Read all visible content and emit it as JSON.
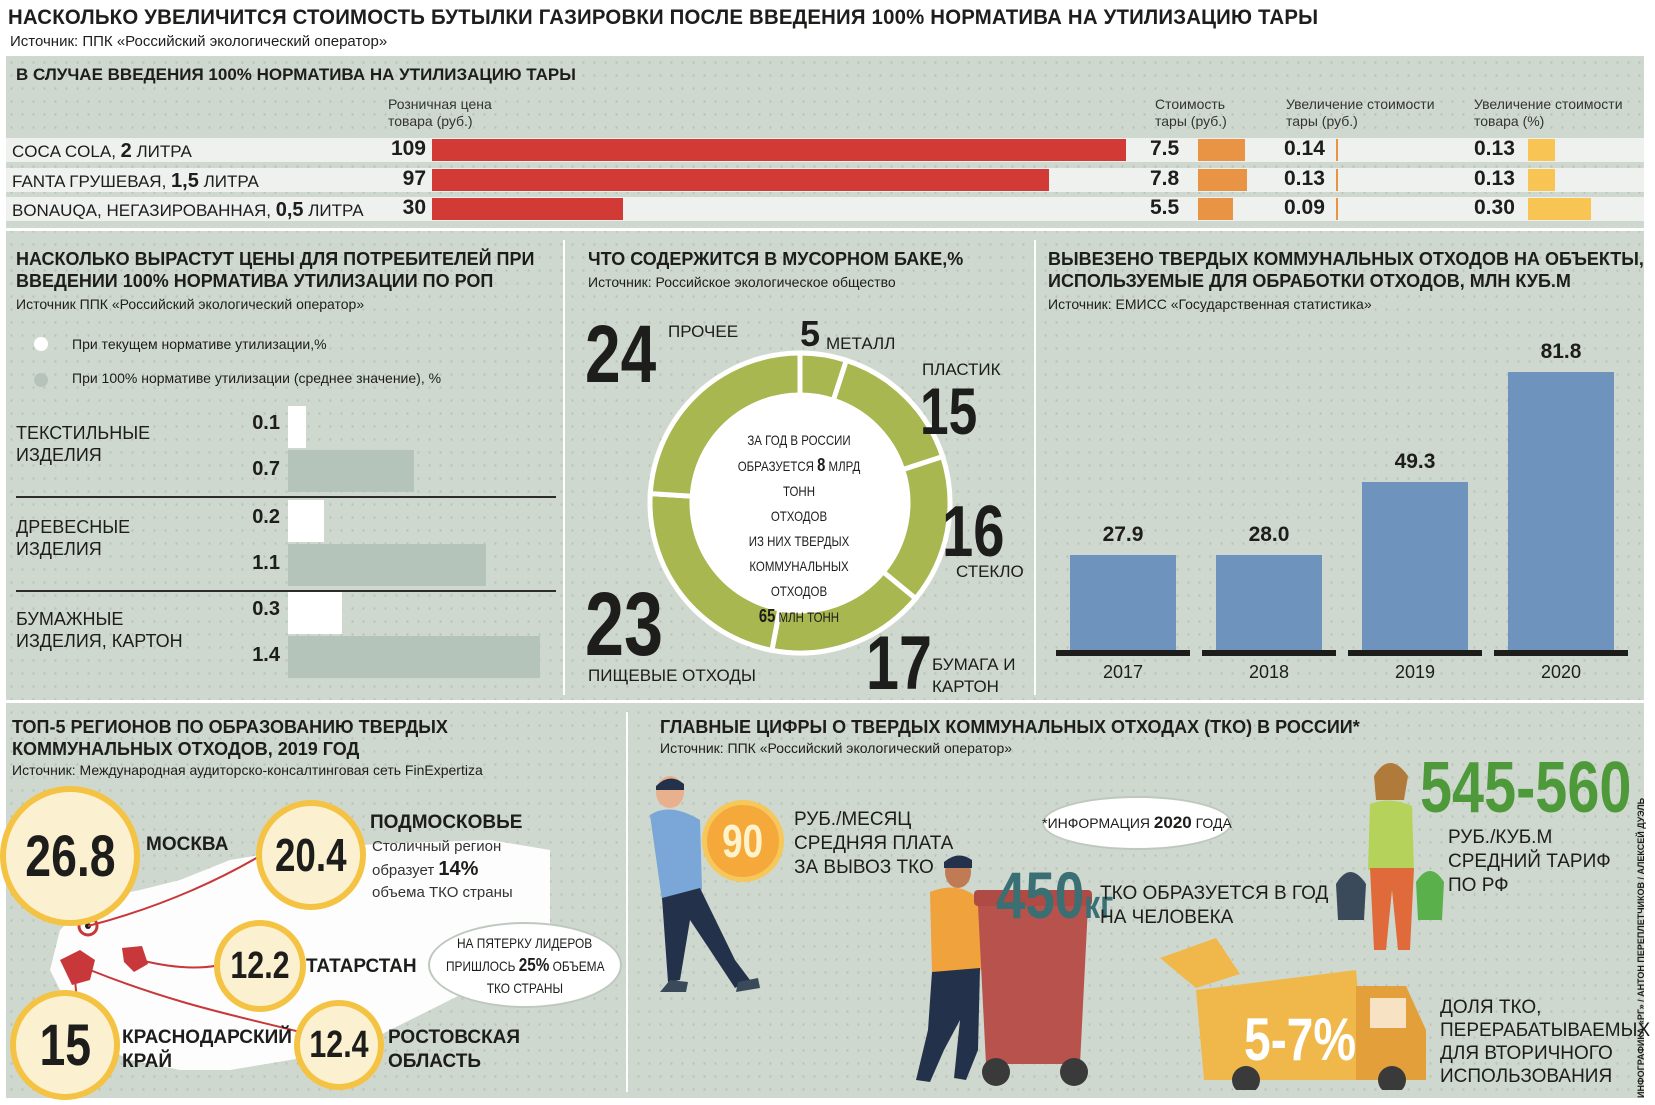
{
  "header": {
    "title": "НАСКОЛЬКО УВЕЛИЧИТСЯ СТОИМОСТЬ БУТЫЛКИ ГАЗИРОВКИ ПОСЛЕ ВВЕДЕНИЯ 100% НОРМАТИВА НА УТИЛИЗАЦИЮ ТАРЫ",
    "source": "Источник: ППК «Российский экологический оператор»"
  },
  "credit": "ИНФОГРАФИКА «РГ» / АНТОН ПЕРЕПЛЕТЧИКОВ / АЛЕКСЕЙ ДУЭЛЬ",
  "colors": {
    "red": "#d23a35",
    "orange": "#e99445",
    "yellow": "#f8c453",
    "olive": "#a8b74f",
    "blue": "#6e93bd",
    "sage": "#b4c4ba",
    "green": "#4e9a3b",
    "teal": "#3a6f73"
  },
  "chart_data": [
    {
      "type": "bar",
      "title": "В СЛУЧАЕ ВВЕДЕНИЯ 100% НОРМАТИВА НА УТИЛИЗАЦИЮ ТАРЫ",
      "col_headers": {
        "price": "Розничная цена товара (руб.)",
        "pack": "Стоимость тары (руб.)",
        "pack_inc": "Увеличение стоимости тары (руб.)",
        "prod_inc": "Увеличение стоимости товара (%)"
      },
      "rows": [
        {
          "name": "COCA COLA, ",
          "vol": "2",
          "unit": " ЛИТРА",
          "price": 109,
          "price_label": "109",
          "pack": 7.5,
          "pack_label": "7.5",
          "pack_inc": 0.14,
          "pack_inc_label": "0.14",
          "prod_inc": 0.13,
          "prod_inc_label": "0.13"
        },
        {
          "name": "FANTA ГРУШЕВАЯ, ",
          "vol": "1,5",
          "unit": " ЛИТРА",
          "price": 97,
          "price_label": "97",
          "pack": 7.8,
          "pack_label": "7.8",
          "pack_inc": 0.13,
          "pack_inc_label": "0.13",
          "prod_inc": 0.13,
          "prod_inc_label": "0.13"
        },
        {
          "name": "BONAUQA, НЕГАЗИРОВАННАЯ, ",
          "vol": "0,5",
          "unit": " ЛИТРА",
          "price": 30,
          "price_label": "30",
          "pack": 5.5,
          "pack_label": "5.5",
          "pack_inc": 0.09,
          "pack_inc_label": "0.09",
          "prod_inc": 0.3,
          "prod_inc_label": "0.30"
        }
      ]
    },
    {
      "type": "bar",
      "title": "НАСКОЛЬКО ВЫРАСТУТ ЦЕНЫ ДЛЯ ПОТРЕБИТЕЛЕЙ ПРИ ВВЕДЕНИИ 100% НОРМАТИВА УТИЛИЗАЦИИ ПО РОП",
      "source": "Источник ППК «Российский экологический оператор»",
      "legend": [
        "При текущем нормативе утилизации,%",
        "При 100% нормативе утилизации (среднее значение), %"
      ],
      "categories": [
        "ТЕКСТИЛЬНЫЕ ИЗДЕЛИЯ",
        "ДРЕВЕСНЫЕ ИЗДЕЛИЯ",
        "БУМАЖНЫЕ ИЗДЕЛИЯ, КАРТОН"
      ],
      "series": [
        {
          "name": "При текущем нормативе утилизации,%",
          "values": [
            0.1,
            0.2,
            0.3
          ],
          "labels": [
            "0.1",
            "0.2",
            "0.3"
          ]
        },
        {
          "name": "При 100% нормативе утилизации (среднее значение), %",
          "values": [
            0.7,
            1.1,
            1.4
          ],
          "labels": [
            "0.7",
            "1.1",
            "1.4"
          ]
        }
      ]
    },
    {
      "type": "pie",
      "title": "ЧТО СОДЕРЖИТСЯ В МУСОРНОМ БАКЕ,%",
      "source": "Источник: Российское экологическое общество",
      "slices": [
        {
          "label": "МЕТАЛЛ",
          "value": 5
        },
        {
          "label": "ПЛАСТИК",
          "value": 15
        },
        {
          "label": "СТЕКЛО",
          "value": 16
        },
        {
          "label": "БУМАГА И КАРТОН",
          "value": 17
        },
        {
          "label": "ПИЩЕВЫЕ ОТХОДЫ",
          "value": 23
        },
        {
          "label": "ПРОЧЕЕ",
          "value": 24
        }
      ],
      "center_text": [
        "ЗА ГОД В РОССИИ",
        "ОБРАЗУЕТСЯ",
        "8",
        "МЛРД ТОНН",
        "ОТХОДОВ",
        "ИЗ НИХ ТВЕРДЫХ",
        "КОММУНАЛЬНЫХ ОТХОДОВ",
        "65",
        "МЛН ТОНН"
      ]
    },
    {
      "type": "bar",
      "title": "ВЫВЕЗЕНО ТВЕРДЫХ КОММУНАЛЬНЫХ ОТХОДОВ НА ОБЪЕКТЫ, ИСПОЛЬЗУЕМЫЕ ДЛЯ ОБРАБОТКИ ОТХОДОВ, МЛН КУБ.М",
      "source": "Источник: ЕМИСС «Государственная статистика»",
      "categories": [
        "2017",
        "2018",
        "2019",
        "2020"
      ],
      "values": [
        27.9,
        28.0,
        49.3,
        81.8
      ],
      "labels": [
        "27.9",
        "28.0",
        "49.3",
        "81.8"
      ]
    }
  ],
  "regions": {
    "title": "ТОП-5 РЕГИОНОВ ПО ОБРАЗОВАНИЮ ТВЕРДЫХ КОММУНАЛЬНЫХ ОТХОДОВ, 2019 ГОД",
    "source": "Источник: Международная аудиторско-консалтинговая сеть FinExpertiza",
    "items": [
      {
        "value": "26.8",
        "name": "МОСКВА"
      },
      {
        "value": "20.4",
        "name": "ПОДМОСКОВЬЕ"
      },
      {
        "value": "12.2",
        "name": "ТАТАРСТАН"
      },
      {
        "value": "15",
        "name": "КРАСНОДАРСКИЙ КРАЙ"
      },
      {
        "value": "12.4",
        "name": "РОСТОВСКАЯ ОБЛАСТЬ"
      }
    ],
    "moscow_region_note": [
      "Столичный регион",
      "образует",
      "14%",
      "объема ТКО страны"
    ],
    "leaders_note": [
      "НА ПЯТЕРКУ ЛИДЕРОВ",
      "ПРИШЛОСЬ",
      "25%",
      "ОБЪЕМА",
      "ТКО СТРАНЫ"
    ]
  },
  "key_figures": {
    "title": "ГЛАВНЫЕ ЦИФРЫ О ТВЕРДЫХ КОММУНАЛЬНЫХ ОТХОДАХ (ТКО) В РОССИИ*",
    "source": "Источник: ППК «Российский экологический оператор»",
    "fee_value": "90",
    "fee_text": [
      "РУБ./МЕСЯЦ",
      "СРЕДНЯЯ ПЛАТА",
      "ЗА ВЫВОЗ ТКО"
    ],
    "info_note": [
      "*ИНФОРМАЦИЯ",
      "2020",
      "ГОДА"
    ],
    "per_capita_value": "450",
    "per_capita_unit": "кг",
    "per_capita_text": [
      "ТКО ОБРАЗУЕТСЯ В ГОД",
      "НА ЧЕЛОВЕКА"
    ],
    "tariff_value": "545-560",
    "tariff_text": [
      "РУБ./КУБ.М",
      "СРЕДНИЙ ТАРИФ",
      "ПО РФ"
    ],
    "recycle_value": "5-7%",
    "recycle_text": [
      "ДОЛЯ ТКО,",
      "ПЕРЕРАБАТЫВАЕМЫХ",
      "ДЛЯ ВТОРИЧНОГО",
      "ИСПОЛЬЗОВАНИЯ"
    ]
  }
}
